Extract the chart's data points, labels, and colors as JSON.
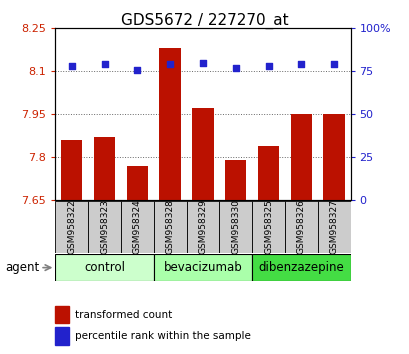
{
  "title": "GDS5672 / 227270_at",
  "samples": [
    "GSM958322",
    "GSM958323",
    "GSM958324",
    "GSM958328",
    "GSM958329",
    "GSM958330",
    "GSM958325",
    "GSM958326",
    "GSM958327"
  ],
  "transformed_count": [
    7.86,
    7.87,
    7.77,
    8.18,
    7.97,
    7.79,
    7.84,
    7.95,
    7.95
  ],
  "percentile_rank": [
    78,
    79,
    76,
    79,
    80,
    77,
    78,
    79,
    79
  ],
  "groups": [
    {
      "label": "control",
      "indices": [
        0,
        1,
        2
      ],
      "color": "#ccffcc"
    },
    {
      "label": "bevacizumab",
      "indices": [
        3,
        4,
        5
      ],
      "color": "#aaffaa"
    },
    {
      "label": "dibenzazepine",
      "indices": [
        6,
        7,
        8
      ],
      "color": "#44dd44"
    }
  ],
  "ylim_left": [
    7.65,
    8.25
  ],
  "ylim_right": [
    0,
    100
  ],
  "yticks_left": [
    7.65,
    7.8,
    7.95,
    8.1,
    8.25
  ],
  "ytick_labels_left": [
    "7.65",
    "7.8",
    "7.95",
    "8.1",
    "8.25"
  ],
  "yticks_right": [
    0,
    25,
    50,
    75,
    100
  ],
  "ytick_labels_right": [
    "0",
    "25",
    "50",
    "75",
    "100%"
  ],
  "bar_color": "#bb1100",
  "dot_color": "#2222cc",
  "bar_width": 0.65,
  "grid_color": "#666666",
  "background_color": "#ffffff",
  "plot_bg_color": "#ffffff",
  "label_color_left": "#cc2200",
  "label_color_right": "#2222cc",
  "agent_label": "agent",
  "legend_bar_label": "transformed count",
  "legend_dot_label": "percentile rank within the sample",
  "title_fontsize": 11,
  "tick_fontsize": 8,
  "group_label_fontsize": 8.5,
  "legend_fontsize": 7.5,
  "sample_label_fontsize": 6.5,
  "sample_box_color": "#cccccc",
  "grid_yticks": [
    7.8,
    7.95,
    8.1
  ]
}
